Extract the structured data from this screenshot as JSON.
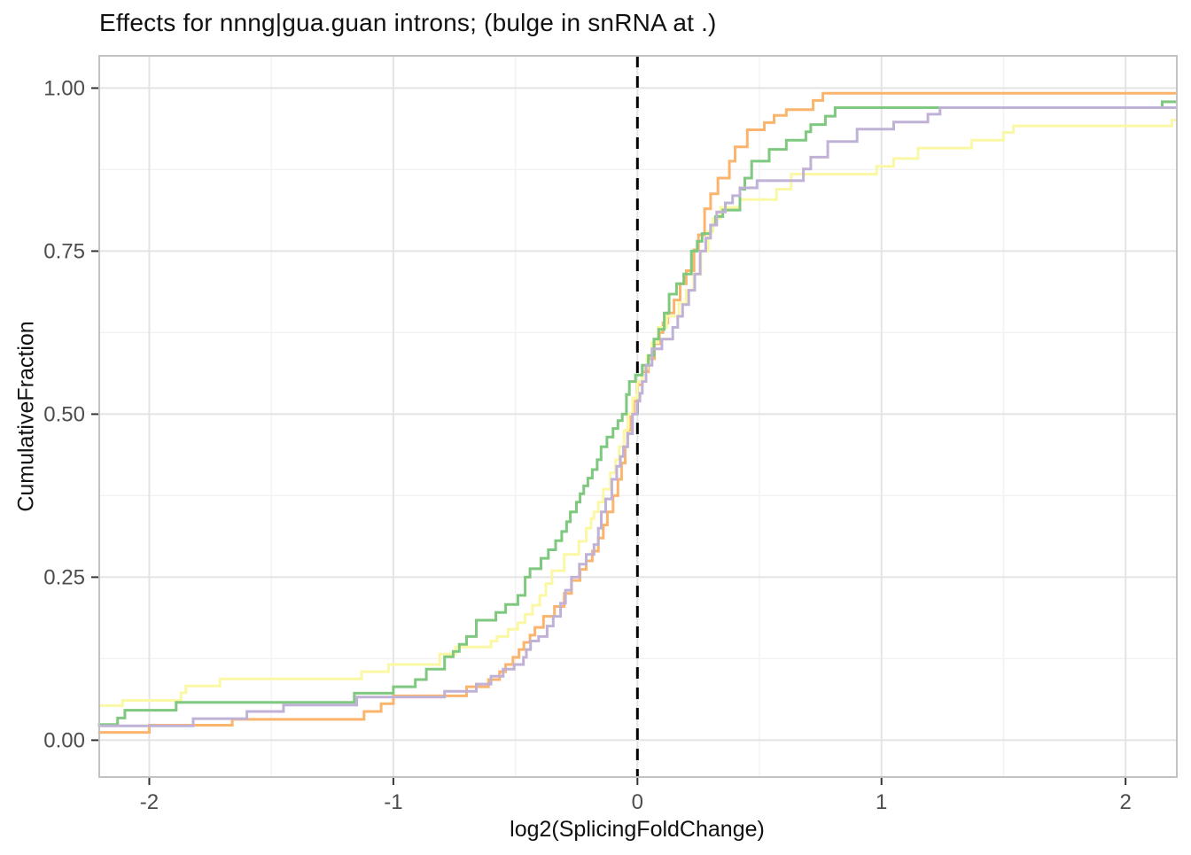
{
  "title": "Effects for nnng|gua.guan introns; (bulge in snRNA at .)",
  "chart_data": {
    "type": "line",
    "subtype": "ecdf-step",
    "title": "Effects for nnng|gua.guan introns; (bulge in snRNA at .)",
    "xlabel": "log2(SplicingFoldChange)",
    "ylabel": "CumulativeFraction",
    "legend": "none",
    "grid": true,
    "axes": {
      "xlim": [
        -2.205,
        2.21
      ],
      "ylim": [
        -0.0565,
        1.0495
      ],
      "x_ticks": [
        {
          "value": -2,
          "label": "-2"
        },
        {
          "value": -1,
          "label": "-1"
        },
        {
          "value": 0,
          "label": "0"
        },
        {
          "value": 1,
          "label": "1"
        },
        {
          "value": 2,
          "label": "2"
        }
      ],
      "y_ticks": [
        {
          "value": 0.0,
          "label": "0.00"
        },
        {
          "value": 0.25,
          "label": "0.25"
        },
        {
          "value": 0.5,
          "label": "0.50"
        },
        {
          "value": 0.75,
          "label": "0.75"
        },
        {
          "value": 1.0,
          "label": "1.00"
        }
      ],
      "x_minor": [
        -1.5,
        -0.5,
        0.5,
        1.5
      ],
      "y_minor": [
        0.125,
        0.375,
        0.625,
        0.875
      ]
    },
    "reference_line": {
      "x": 0,
      "style": "dashed",
      "color": "#000000"
    },
    "colors": {
      "grid_major": "#e4e4e4",
      "grid_minor": "#f2f2f2",
      "panel_border": "#c2c2c2",
      "tick_mark": "#333333",
      "tick_label": "#4d4d4d",
      "panel_bg": "#ffffff"
    },
    "series": [
      {
        "name": "orange",
        "color": "#FBB46C",
        "points": [
          [
            -2.21,
            0.012
          ],
          [
            -2.0,
            0.023
          ],
          [
            -1.66,
            0.032
          ],
          [
            -1.12,
            0.044
          ],
          [
            -1.05,
            0.056
          ],
          [
            -1.0,
            0.068
          ],
          [
            -0.7,
            0.082
          ],
          [
            -0.61,
            0.093
          ],
          [
            -0.565,
            0.105
          ],
          [
            -0.54,
            0.116
          ],
          [
            -0.51,
            0.127
          ],
          [
            -0.485,
            0.139
          ],
          [
            -0.465,
            0.15
          ],
          [
            -0.44,
            0.161
          ],
          [
            -0.42,
            0.173
          ],
          [
            -0.385,
            0.19
          ],
          [
            -0.34,
            0.205
          ],
          [
            -0.3,
            0.225
          ],
          [
            -0.27,
            0.245
          ],
          [
            -0.235,
            0.262
          ],
          [
            -0.21,
            0.275
          ],
          [
            -0.185,
            0.29
          ],
          [
            -0.16,
            0.31
          ],
          [
            -0.14,
            0.33
          ],
          [
            -0.123,
            0.35
          ],
          [
            -0.1,
            0.375
          ],
          [
            -0.08,
            0.4
          ],
          [
            -0.065,
            0.425
          ],
          [
            -0.05,
            0.45
          ],
          [
            -0.04,
            0.475
          ],
          [
            -0.027,
            0.5
          ],
          [
            -0.015,
            0.52
          ],
          [
            0.0,
            0.545
          ],
          [
            0.02,
            0.565
          ],
          [
            0.045,
            0.585
          ],
          [
            0.07,
            0.608
          ],
          [
            0.09,
            0.625
          ],
          [
            0.105,
            0.64
          ],
          [
            0.125,
            0.655
          ],
          [
            0.15,
            0.675
          ],
          [
            0.175,
            0.7
          ],
          [
            0.2,
            0.72
          ],
          [
            0.232,
            0.752
          ],
          [
            0.25,
            0.775
          ],
          [
            0.275,
            0.815
          ],
          [
            0.3,
            0.838
          ],
          [
            0.33,
            0.862
          ],
          [
            0.377,
            0.888
          ],
          [
            0.4,
            0.91
          ],
          [
            0.45,
            0.936
          ],
          [
            0.52,
            0.947
          ],
          [
            0.56,
            0.958
          ],
          [
            0.61,
            0.967
          ],
          [
            0.72,
            0.981
          ],
          [
            0.76,
            0.992
          ]
        ]
      },
      {
        "name": "yellow",
        "color": "#FAF8A4",
        "points": [
          [
            -2.21,
            0.053
          ],
          [
            -2.11,
            0.061
          ],
          [
            -1.87,
            0.073
          ],
          [
            -1.85,
            0.083
          ],
          [
            -1.71,
            0.094
          ],
          [
            -1.13,
            0.105
          ],
          [
            -1.02,
            0.116
          ],
          [
            -0.81,
            0.132
          ],
          [
            -0.745,
            0.143
          ],
          [
            -0.6,
            0.152
          ],
          [
            -0.575,
            0.159
          ],
          [
            -0.53,
            0.17
          ],
          [
            -0.49,
            0.18
          ],
          [
            -0.46,
            0.193
          ],
          [
            -0.43,
            0.207
          ],
          [
            -0.4,
            0.222
          ],
          [
            -0.375,
            0.24
          ],
          [
            -0.35,
            0.26
          ],
          [
            -0.3,
            0.285
          ],
          [
            -0.24,
            0.305
          ],
          [
            -0.21,
            0.325
          ],
          [
            -0.19,
            0.34
          ],
          [
            -0.178,
            0.35
          ],
          [
            -0.16,
            0.365
          ],
          [
            -0.14,
            0.385
          ],
          [
            -0.111,
            0.41
          ],
          [
            -0.09,
            0.43
          ],
          [
            -0.075,
            0.45
          ],
          [
            -0.055,
            0.475
          ],
          [
            -0.04,
            0.5
          ],
          [
            -0.02,
            0.525
          ],
          [
            0.0,
            0.55
          ],
          [
            0.02,
            0.57
          ],
          [
            0.04,
            0.59
          ],
          [
            0.06,
            0.61
          ],
          [
            0.085,
            0.633
          ],
          [
            0.12,
            0.65
          ],
          [
            0.17,
            0.67
          ],
          [
            0.2,
            0.69
          ],
          [
            0.23,
            0.715
          ],
          [
            0.26,
            0.75
          ],
          [
            0.29,
            0.78
          ],
          [
            0.31,
            0.8
          ],
          [
            0.34,
            0.817
          ],
          [
            0.42,
            0.829
          ],
          [
            0.57,
            0.845
          ],
          [
            0.63,
            0.868
          ],
          [
            0.98,
            0.88
          ],
          [
            1.05,
            0.892
          ],
          [
            1.15,
            0.908
          ],
          [
            1.37,
            0.92
          ],
          [
            1.5,
            0.932
          ],
          [
            1.54,
            0.942
          ],
          [
            2.19,
            0.951
          ]
        ]
      },
      {
        "name": "green",
        "color": "#7FC87F",
        "points": [
          [
            -2.21,
            0.024
          ],
          [
            -2.13,
            0.034
          ],
          [
            -2.1,
            0.046
          ],
          [
            -1.89,
            0.058
          ],
          [
            -1.16,
            0.072
          ],
          [
            -1.0,
            0.082
          ],
          [
            -0.91,
            0.093
          ],
          [
            -0.865,
            0.109
          ],
          [
            -0.79,
            0.128
          ],
          [
            -0.755,
            0.136
          ],
          [
            -0.73,
            0.147
          ],
          [
            -0.7,
            0.159
          ],
          [
            -0.66,
            0.184
          ],
          [
            -0.58,
            0.196
          ],
          [
            -0.54,
            0.208
          ],
          [
            -0.49,
            0.222
          ],
          [
            -0.46,
            0.25
          ],
          [
            -0.44,
            0.263
          ],
          [
            -0.395,
            0.279
          ],
          [
            -0.365,
            0.292
          ],
          [
            -0.335,
            0.306
          ],
          [
            -0.31,
            0.32
          ],
          [
            -0.29,
            0.335
          ],
          [
            -0.275,
            0.35
          ],
          [
            -0.25,
            0.365
          ],
          [
            -0.235,
            0.378
          ],
          [
            -0.22,
            0.39
          ],
          [
            -0.203,
            0.402
          ],
          [
            -0.185,
            0.415
          ],
          [
            -0.165,
            0.43
          ],
          [
            -0.149,
            0.45
          ],
          [
            -0.125,
            0.465
          ],
          [
            -0.1,
            0.478
          ],
          [
            -0.08,
            0.49
          ],
          [
            -0.062,
            0.5
          ],
          [
            -0.045,
            0.53
          ],
          [
            -0.033,
            0.55
          ],
          [
            -0.008,
            0.56
          ],
          [
            0.02,
            0.575
          ],
          [
            0.045,
            0.59
          ],
          [
            0.068,
            0.615
          ],
          [
            0.087,
            0.63
          ],
          [
            0.11,
            0.655
          ],
          [
            0.13,
            0.684
          ],
          [
            0.16,
            0.7
          ],
          [
            0.19,
            0.715
          ],
          [
            0.221,
            0.75
          ],
          [
            0.245,
            0.765
          ],
          [
            0.265,
            0.777
          ],
          [
            0.3,
            0.79
          ],
          [
            0.32,
            0.803
          ],
          [
            0.35,
            0.813
          ],
          [
            0.42,
            0.845
          ],
          [
            0.44,
            0.862
          ],
          [
            0.468,
            0.888
          ],
          [
            0.54,
            0.906
          ],
          [
            0.61,
            0.92
          ],
          [
            0.69,
            0.933
          ],
          [
            0.71,
            0.944
          ],
          [
            0.77,
            0.957
          ],
          [
            0.81,
            0.97
          ],
          [
            2.15,
            0.979
          ]
        ]
      },
      {
        "name": "purple",
        "color": "#C0B2D6",
        "points": [
          [
            -2.21,
            0.022
          ],
          [
            -1.82,
            0.033
          ],
          [
            -1.6,
            0.044
          ],
          [
            -1.45,
            0.054
          ],
          [
            -1.15,
            0.066
          ],
          [
            -0.79,
            0.075
          ],
          [
            -0.66,
            0.086
          ],
          [
            -0.6,
            0.098
          ],
          [
            -0.55,
            0.109
          ],
          [
            -0.505,
            0.116
          ],
          [
            -0.467,
            0.127
          ],
          [
            -0.455,
            0.139
          ],
          [
            -0.438,
            0.152
          ],
          [
            -0.405,
            0.159
          ],
          [
            -0.37,
            0.175
          ],
          [
            -0.345,
            0.19
          ],
          [
            -0.315,
            0.21
          ],
          [
            -0.295,
            0.23
          ],
          [
            -0.27,
            0.25
          ],
          [
            -0.238,
            0.27
          ],
          [
            -0.21,
            0.285
          ],
          [
            -0.178,
            0.3
          ],
          [
            -0.16,
            0.325
          ],
          [
            -0.148,
            0.35
          ],
          [
            -0.13,
            0.37
          ],
          [
            -0.105,
            0.4
          ],
          [
            -0.085,
            0.42
          ],
          [
            -0.07,
            0.435
          ],
          [
            -0.057,
            0.45
          ],
          [
            -0.04,
            0.47
          ],
          [
            -0.02,
            0.5
          ],
          [
            0.0,
            0.52
          ],
          [
            0.01,
            0.532
          ],
          [
            0.02,
            0.55
          ],
          [
            0.035,
            0.575
          ],
          [
            0.06,
            0.6
          ],
          [
            0.1,
            0.615
          ],
          [
            0.145,
            0.633
          ],
          [
            0.165,
            0.65
          ],
          [
            0.185,
            0.668
          ],
          [
            0.21,
            0.69
          ],
          [
            0.235,
            0.715
          ],
          [
            0.257,
            0.75
          ],
          [
            0.28,
            0.77
          ],
          [
            0.3,
            0.79
          ],
          [
            0.325,
            0.81
          ],
          [
            0.36,
            0.824
          ],
          [
            0.39,
            0.835
          ],
          [
            0.42,
            0.847
          ],
          [
            0.49,
            0.858
          ],
          [
            0.68,
            0.876
          ],
          [
            0.71,
            0.894
          ],
          [
            0.78,
            0.918
          ],
          [
            0.9,
            0.937
          ],
          [
            1.05,
            0.948
          ],
          [
            1.19,
            0.96
          ],
          [
            1.24,
            0.97
          ]
        ]
      }
    ]
  }
}
